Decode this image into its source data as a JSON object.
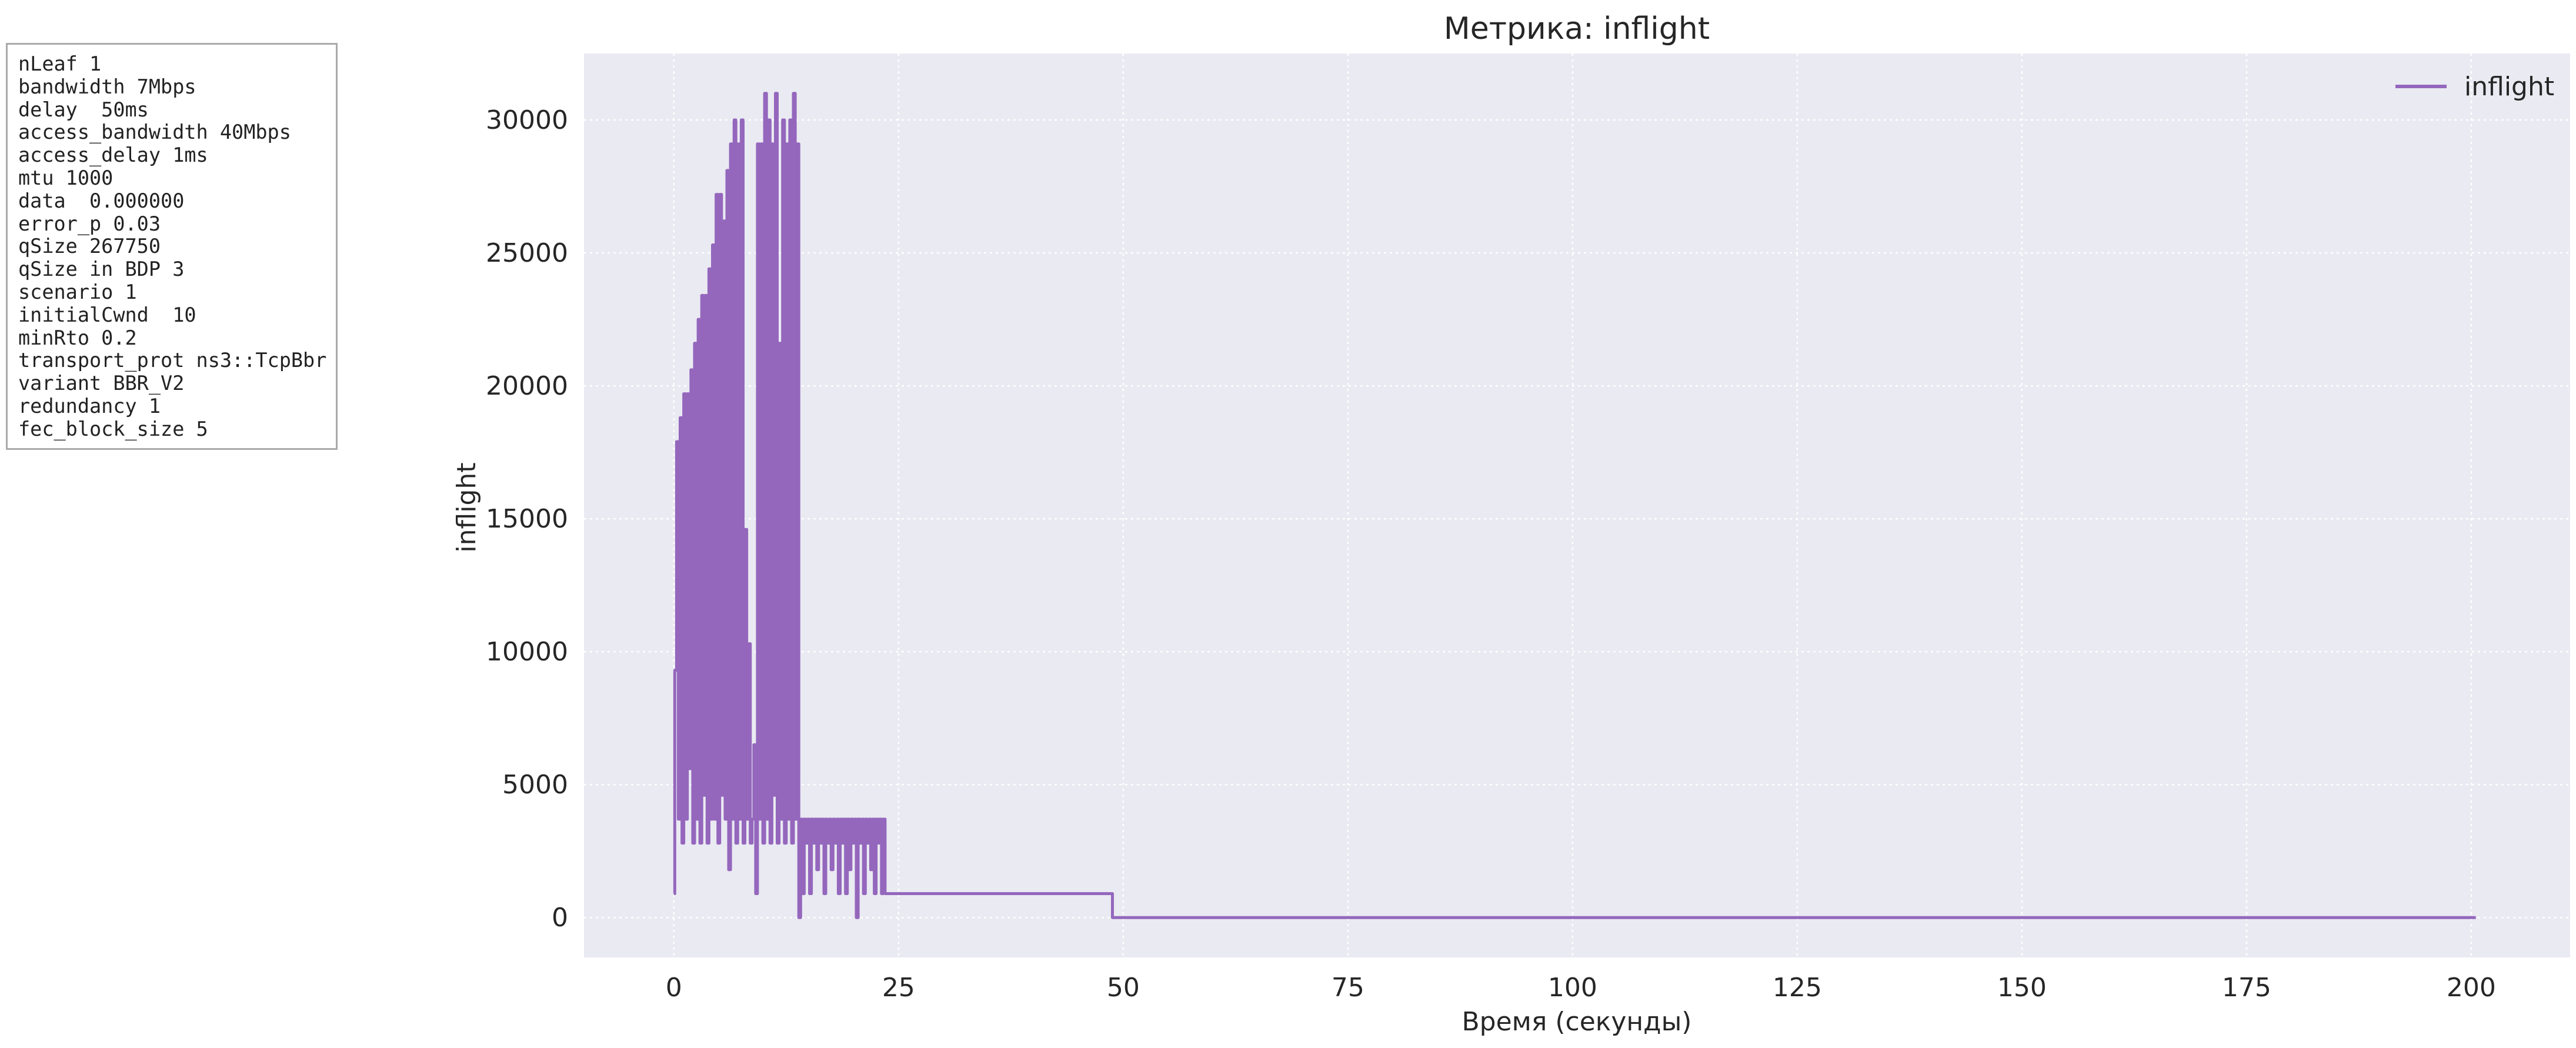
{
  "params": [
    "nLeaf 1",
    "bandwidth 7Mbps",
    "delay  50ms",
    "access_bandwidth 40Mbps",
    "access_delay 1ms",
    "mtu 1000",
    "data  0.000000",
    "error_p 0.03",
    "qSize 267750",
    "qSize in BDP 3",
    "scenario 1",
    "initialCwnd  10",
    "minRto 0.2",
    "transport_prot ns3::TcpBbr",
    "variant BBR_V2",
    "redundancy 1",
    "fec_block_size 5"
  ],
  "chart_data": {
    "type": "line",
    "title": "Метрика: inflight",
    "xlabel": "Время (секунды)",
    "ylabel": "inflight",
    "xlim": [
      -10,
      211
    ],
    "ylim": [
      -1500,
      32500
    ],
    "xticks": [
      0,
      25,
      50,
      75,
      100,
      125,
      150,
      175,
      200
    ],
    "yticks": [
      0,
      5000,
      10000,
      15000,
      20000,
      25000,
      30000
    ],
    "grid": true,
    "legend_position": "top-right",
    "background_color": "#eaeaf2",
    "series": [
      {
        "name": "inflight",
        "color": "#9467bd",
        "x": [
          0,
          0.1,
          0.3,
          0.5,
          0.7,
          0.9,
          1.1,
          1.3,
          1.5,
          1.7,
          1.9,
          2.1,
          2.3,
          2.5,
          2.7,
          2.9,
          3.1,
          3.3,
          3.5,
          3.7,
          3.9,
          4.1,
          4.3,
          4.5,
          4.7,
          4.9,
          5.1,
          5.3,
          5.5,
          5.7,
          5.9,
          6.1,
          6.3,
          6.5,
          6.7,
          6.9,
          7.1,
          7.3,
          7.5,
          7.7,
          7.9,
          8.1,
          8.3,
          8.5,
          8.7,
          8.9,
          9.1,
          9.3,
          9.5,
          9.7,
          9.9,
          10.1,
          10.3,
          10.5,
          10.7,
          10.9,
          11.1,
          11.3,
          11.5,
          11.7,
          11.9,
          12.1,
          12.3,
          12.5,
          12.7,
          12.9,
          13.1,
          13.3,
          13.5,
          13.7,
          13.9,
          14.1,
          14.3,
          14.5,
          14.7,
          14.9,
          15.1,
          15.3,
          15.5,
          15.7,
          15.9,
          16.1,
          16.3,
          16.5,
          16.7,
          16.9,
          17.1,
          17.3,
          17.5,
          17.7,
          17.9,
          18.1,
          18.3,
          18.5,
          18.7,
          18.9,
          19.1,
          19.3,
          19.5,
          19.7,
          19.9,
          20.1,
          20.3,
          20.5,
          20.7,
          20.9,
          21.1,
          21.3,
          21.5,
          21.7,
          21.9,
          22.1,
          22.3,
          22.5,
          22.7,
          22.9,
          23.1,
          23.3,
          23.5,
          23.8,
          24.2,
          48.8,
          49.2,
          200.5
        ],
        "y": [
          900,
          9300,
          17900,
          3700,
          18800,
          2800,
          19700,
          3700,
          19700,
          5600,
          20600,
          2800,
          21600,
          3700,
          22500,
          2800,
          23400,
          4600,
          23400,
          2800,
          24400,
          3700,
          25300,
          3700,
          27200,
          2800,
          27200,
          4600,
          26200,
          3700,
          28100,
          1800,
          29100,
          3700,
          30000,
          2800,
          29100,
          3700,
          30000,
          2800,
          14600,
          3700,
          10300,
          2800,
          3700,
          6500,
          900,
          29100,
          3700,
          29100,
          2800,
          31000,
          3700,
          30000,
          2800,
          29100,
          4600,
          31000,
          2800,
          21600,
          3700,
          30000,
          2800,
          29100,
          3700,
          30000,
          2800,
          31000,
          3700,
          29100,
          0,
          3700,
          900,
          3700,
          2800,
          3700,
          900,
          3700,
          2800,
          3700,
          1800,
          3700,
          2800,
          3700,
          900,
          3700,
          2800,
          3700,
          1800,
          3700,
          2800,
          3700,
          900,
          3700,
          2800,
          3700,
          900,
          3700,
          1800,
          3700,
          2800,
          3700,
          0,
          3700,
          2800,
          3700,
          900,
          3700,
          2800,
          3700,
          1800,
          3700,
          900,
          3700,
          2800,
          3700,
          900,
          3700,
          900,
          900,
          900,
          0,
          0,
          0
        ]
      }
    ]
  }
}
